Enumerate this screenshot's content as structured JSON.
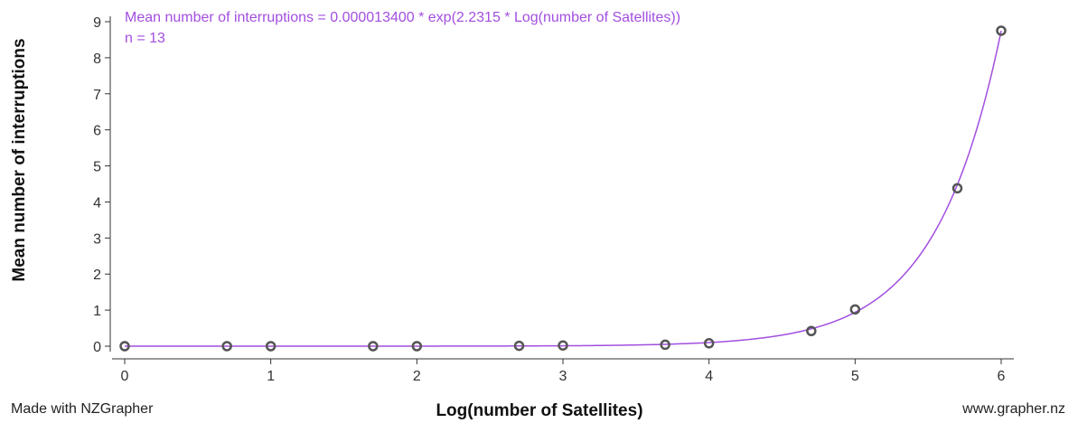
{
  "chart_data": {
    "type": "scatter",
    "title": "",
    "xlabel": "Log(number of Satellites)",
    "ylabel": "Mean number of interruptions",
    "xlim": [
      0,
      6
    ],
    "ylim": [
      0,
      9
    ],
    "xticks": [
      "0",
      "1",
      "2",
      "3",
      "4",
      "5",
      "6"
    ],
    "yticks": [
      "0",
      "1",
      "2",
      "3",
      "4",
      "5",
      "6",
      "7",
      "8",
      "9"
    ],
    "grid": false,
    "points": {
      "x": [
        0,
        0.7,
        1,
        1.7,
        2,
        2.7,
        3,
        3.7,
        4,
        4.7,
        5,
        5.7,
        6
      ],
      "y": [
        0,
        0,
        0,
        0,
        0,
        0.01,
        0.02,
        0.04,
        0.08,
        0.42,
        1.02,
        4.38,
        8.75
      ]
    },
    "fit": {
      "equation": "Mean number of interruptions = 0.000013400 * exp(2.2315 * Log(number of Satellites))",
      "n_label": "n = 13",
      "a": 1.34e-05,
      "b": 2.2315
    },
    "colors": {
      "fit": "#a24fe0",
      "points": "#555555",
      "axis": "#333333"
    }
  },
  "footer": {
    "left": "Made with NZGrapher",
    "right": "www.grapher.nz"
  }
}
